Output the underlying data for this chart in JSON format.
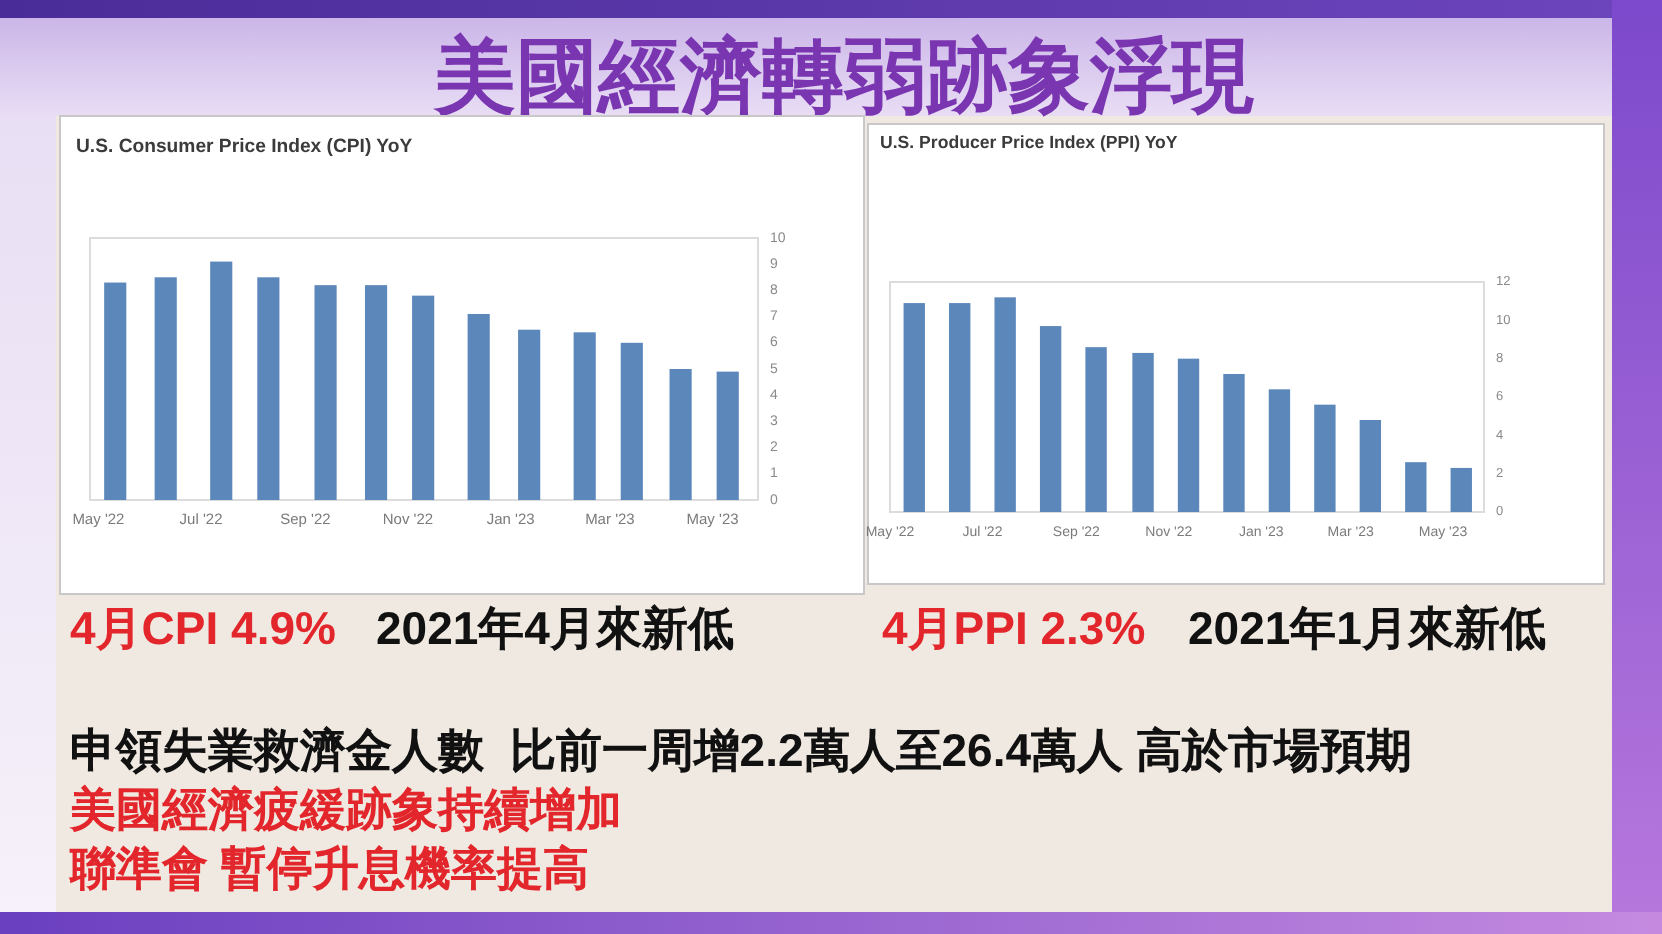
{
  "chart_data": [
    {
      "type": "other",
      "title": "美國經濟轉弱跡象浮現"
    },
    {
      "type": "bar",
      "title": "U.S. Consumer Price Index (CPI) YoY",
      "x": [
        "2022-05-11",
        "2022-06-10",
        "2022-07-13",
        "2022-08-10",
        "2022-09-13",
        "2022-10-13",
        "2022-11-10",
        "2022-12-13",
        "2023-01-12",
        "2023-02-14",
        "2023-03-14",
        "2023-04-12",
        "2023-05-10"
      ],
      "values": [
        8.3,
        8.5,
        9.1,
        8.5,
        8.2,
        8.2,
        7.8,
        7.1,
        6.5,
        6.4,
        6.0,
        5.0,
        4.9
      ],
      "color": "#5b87bb",
      "xlim": [
        "2022-04-26",
        "2023-05-28"
      ],
      "xticks": [
        {
          "value": "2022-05-01",
          "label": "May '22"
        },
        {
          "value": "2022-07-01",
          "label": "Jul '22"
        },
        {
          "value": "2022-09-01",
          "label": "Sep '22"
        },
        {
          "value": "2022-11-01",
          "label": "Nov '22"
        },
        {
          "value": "2023-01-01",
          "label": "Jan '23"
        },
        {
          "value": "2023-03-01",
          "label": "Mar '23"
        },
        {
          "value": "2023-05-01",
          "label": "May '23"
        }
      ],
      "ylim": [
        0,
        10
      ],
      "yticks": [
        0,
        1,
        2,
        3,
        4,
        5,
        6,
        7,
        8,
        9,
        10
      ],
      "annotations": [
        "4月CPI 4.9%",
        "2021年4月來新低"
      ]
    },
    {
      "type": "bar",
      "title": "U.S. Producer Price Index (PPI) YoY",
      "x": [
        "2022-05-17",
        "2022-06-16",
        "2022-07-16",
        "2022-08-15",
        "2022-09-14",
        "2022-10-15",
        "2022-11-14",
        "2022-12-14",
        "2023-01-13",
        "2023-02-12",
        "2023-03-14",
        "2023-04-13",
        "2023-05-13"
      ],
      "values": [
        10.9,
        10.9,
        11.2,
        9.7,
        8.6,
        8.3,
        8.0,
        7.2,
        6.4,
        5.6,
        4.8,
        2.6,
        2.3
      ],
      "color": "#5b87bb",
      "xlim": [
        "2022-05-01",
        "2023-05-28"
      ],
      "xticks": [
        {
          "value": "2022-05-01",
          "label": "May '22"
        },
        {
          "value": "2022-07-01",
          "label": "Jul '22"
        },
        {
          "value": "2022-09-01",
          "label": "Sep '22"
        },
        {
          "value": "2022-11-01",
          "label": "Nov '22"
        },
        {
          "value": "2023-01-01",
          "label": "Jan '23"
        },
        {
          "value": "2023-03-01",
          "label": "Mar '23"
        },
        {
          "value": "2023-05-01",
          "label": "May '23"
        }
      ],
      "ylim": [
        0,
        12
      ],
      "yticks": [
        0,
        2,
        4,
        6,
        8,
        10,
        12
      ],
      "annotations": [
        "4月PPI 2.3%",
        "2021年1月來新低"
      ]
    },
    {
      "type": "other",
      "annotations": [
        "申領失業救濟金人數  比前一周增2.2萬人至26.4萬人 高於市場預期",
        "美國經濟疲緩跡象持續增加",
        "聯準會 暫停升息機率提高"
      ]
    }
  ]
}
